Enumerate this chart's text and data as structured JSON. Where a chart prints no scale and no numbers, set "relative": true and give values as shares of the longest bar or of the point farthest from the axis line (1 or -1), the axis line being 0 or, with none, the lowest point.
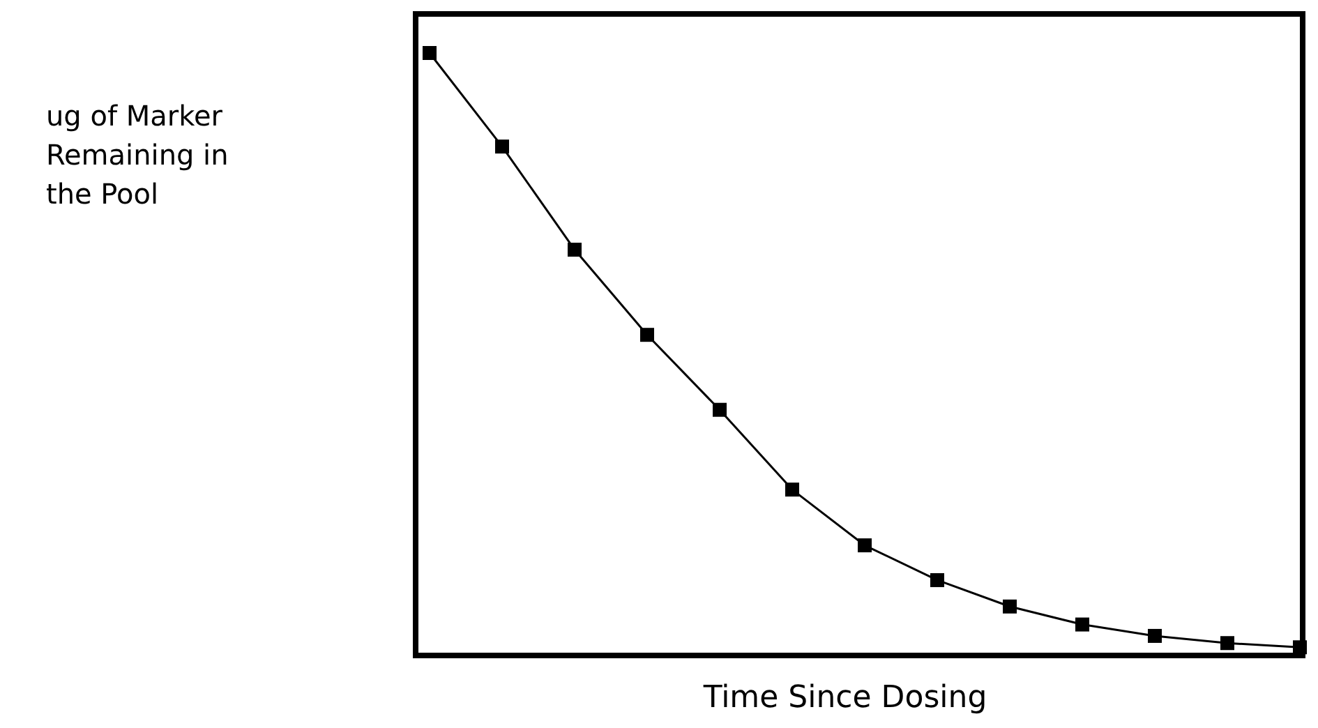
{
  "chart_data": {
    "type": "line",
    "relative": true,
    "xlabel": "Time Since Dosing",
    "annotations": [
      "ug of Marker Remaining in the Pool"
    ],
    "categories": [
      null,
      null,
      null,
      null,
      null,
      null,
      null,
      null,
      null,
      null,
      null,
      null,
      null
    ],
    "series": [
      {
        "color": "#000000",
        "values": [
          1.0,
          0.844,
          0.672,
          0.53,
          0.405,
          0.272,
          0.179,
          0.121,
          0.077,
          0.047,
          0.028,
          0.016,
          0.009
        ]
      }
    ],
    "marker": "square",
    "line_style": "solid"
  }
}
